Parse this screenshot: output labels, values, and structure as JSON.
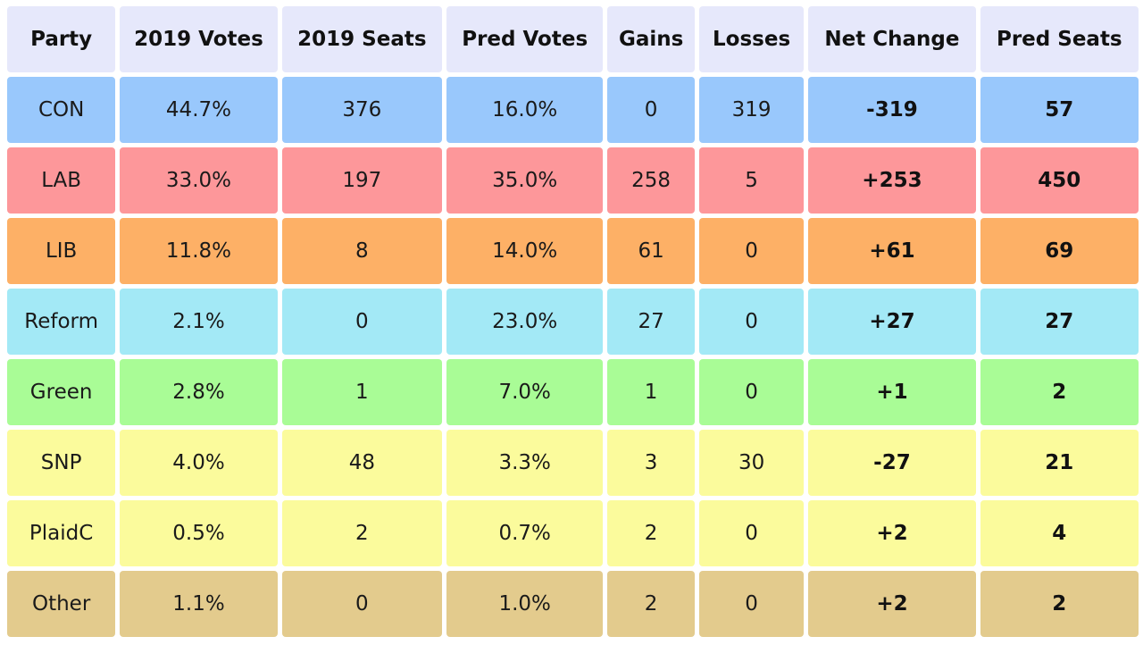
{
  "columns": [
    "Party",
    "2019 Votes",
    "2019 Seats",
    "Pred Votes",
    "Gains",
    "Losses",
    "Net Change",
    "Pred Seats"
  ],
  "rows": [
    {
      "color": "#99c8fc",
      "cells": [
        "CON",
        "44.7%",
        "376",
        "16.0%",
        "0",
        "319",
        "-319",
        "57"
      ]
    },
    {
      "color": "#fd979a",
      "cells": [
        "LAB",
        "33.0%",
        "197",
        "35.0%",
        "258",
        "5",
        "+253",
        "450"
      ]
    },
    {
      "color": "#fdb066",
      "cells": [
        "LIB",
        "11.8%",
        "8",
        "14.0%",
        "61",
        "0",
        "+61",
        "69"
      ]
    },
    {
      "color": "#a3e9f6",
      "cells": [
        "Reform",
        "2.1%",
        "0",
        "23.0%",
        "27",
        "0",
        "+27",
        "27"
      ]
    },
    {
      "color": "#a9fc96",
      "cells": [
        "Green",
        "2.8%",
        "1",
        "7.0%",
        "1",
        "0",
        "+1",
        "2"
      ]
    },
    {
      "color": "#fbfb9c",
      "cells": [
        "SNP",
        "4.0%",
        "48",
        "3.3%",
        "3",
        "30",
        "-27",
        "21"
      ]
    },
    {
      "color": "#fbfb9c",
      "cells": [
        "PlaidC",
        "0.5%",
        "2",
        "0.7%",
        "2",
        "0",
        "+2",
        "4"
      ]
    },
    {
      "color": "#e3cb8d",
      "cells": [
        "Other",
        "1.1%",
        "0",
        "1.0%",
        "2",
        "0",
        "+2",
        "2"
      ]
    }
  ]
}
